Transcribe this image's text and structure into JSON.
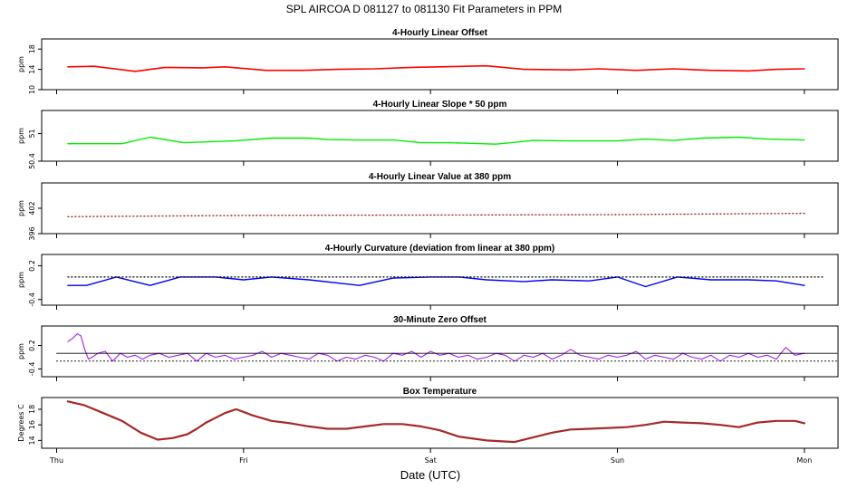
{
  "figure": {
    "title": "SPL   AIRCOA D   081127 to 081130   Fit Parameters in PPM",
    "xlabel": "Date (UTC)",
    "x_ticks": [
      "Thu",
      "Fri",
      "Sat",
      "Sun",
      "Mon"
    ]
  },
  "chart_data": [
    {
      "type": "line",
      "title": "4-Hourly Linear Offset",
      "ylabel": "ppm",
      "ylim": [
        10,
        20
      ],
      "yticks": [
        10,
        14,
        18
      ],
      "series": [
        {
          "color": "#ff0000",
          "width": 1.6,
          "style": "solid",
          "x": [
            0.06,
            0.2,
            0.42,
            0.58,
            0.78,
            0.9,
            1.12,
            1.32,
            1.5,
            1.7,
            1.9,
            2.05,
            2.3,
            2.5,
            2.75,
            2.9,
            3.1,
            3.3,
            3.5,
            3.7,
            3.85,
            4.0
          ],
          "values": [
            14.5,
            14.6,
            13.6,
            14.4,
            14.3,
            14.5,
            13.8,
            13.8,
            14.0,
            14.1,
            14.4,
            14.5,
            14.7,
            14.0,
            13.9,
            14.1,
            13.8,
            14.1,
            13.8,
            13.7,
            14.0,
            14.1
          ]
        }
      ]
    },
    {
      "type": "line",
      "title": "4-Hourly Linear Slope * 50 ppm",
      "ylabel": "ppm",
      "ylim": [
        50.4,
        51.5
      ],
      "yticks": [
        50.4,
        51.0
      ],
      "series": [
        {
          "color": "#00ee00",
          "width": 1.4,
          "style": "solid",
          "x": [
            0.06,
            0.35,
            0.5,
            0.68,
            0.95,
            1.15,
            1.35,
            1.45,
            1.6,
            1.8,
            1.95,
            2.1,
            2.35,
            2.55,
            2.75,
            3.0,
            3.15,
            3.3,
            3.45,
            3.65,
            3.8,
            4.0
          ],
          "values": [
            50.78,
            50.78,
            50.92,
            50.8,
            50.84,
            50.9,
            50.9,
            50.87,
            50.86,
            50.86,
            50.8,
            50.8,
            50.77,
            50.85,
            50.84,
            50.84,
            50.88,
            50.85,
            50.9,
            50.92,
            50.88,
            50.86
          ]
        }
      ]
    },
    {
      "type": "line",
      "title": "4-Hourly Linear Value at 380 ppm",
      "ylabel": "ppm",
      "ylim": [
        396,
        408
      ],
      "yticks": [
        396,
        402
      ],
      "series": [
        {
          "color": "#a52a2a",
          "width": 1.4,
          "style": "dotted",
          "x": [
            0.06,
            1.0,
            2.0,
            3.0,
            4.0
          ],
          "values": [
            400.0,
            400.3,
            400.4,
            400.5,
            400.8
          ]
        }
      ]
    },
    {
      "type": "line",
      "title": "4-Hourly Curvature (deviation from linear at 380 ppm)",
      "ylabel": "ppm",
      "ylim": [
        -0.5,
        0.4
      ],
      "yticks": [
        -0.4,
        0.2
      ],
      "series": [
        {
          "color": "#0000ee",
          "width": 1.4,
          "style": "solid",
          "x": [
            0.06,
            0.16,
            0.32,
            0.5,
            0.66,
            0.85,
            1.0,
            1.15,
            1.35,
            1.62,
            1.8,
            2.0,
            2.15,
            2.3,
            2.5,
            2.65,
            2.85,
            3.0,
            3.15,
            3.32,
            3.5,
            3.7,
            3.85,
            4.0
          ],
          "values": [
            -0.15,
            -0.15,
            0.0,
            -0.15,
            0.0,
            0.0,
            -0.05,
            0.0,
            -0.05,
            -0.15,
            -0.02,
            0.0,
            0.0,
            -0.05,
            -0.08,
            -0.05,
            -0.07,
            0.0,
            -0.17,
            0.0,
            -0.05,
            -0.05,
            -0.07,
            -0.15
          ]
        },
        {
          "color": "#000000",
          "width": 1.3,
          "style": "dotted",
          "x": [
            0.06,
            4.1
          ],
          "values": [
            0.0,
            0.0
          ]
        }
      ]
    },
    {
      "type": "line",
      "title": "30-Minute Zero Offset",
      "ylabel": "ppm",
      "ylim": [
        -0.6,
        0.7
      ],
      "yticks": [
        -0.4,
        0.2
      ],
      "series": [
        {
          "color": "#a020f0",
          "width": 1.1,
          "style": "solid",
          "x": [
            0.06,
            0.09,
            0.11,
            0.13,
            0.15,
            0.17,
            0.19,
            0.22,
            0.26,
            0.3,
            0.34,
            0.38,
            0.42,
            0.46,
            0.5,
            0.55,
            0.6,
            0.65,
            0.7,
            0.75,
            0.8,
            0.85,
            0.9,
            0.95,
            1.0,
            1.05,
            1.1,
            1.15,
            1.2,
            1.25,
            1.3,
            1.35,
            1.4,
            1.45,
            1.5,
            1.55,
            1.6,
            1.65,
            1.7,
            1.75,
            1.8,
            1.85,
            1.9,
            1.95,
            2.0,
            2.05,
            2.1,
            2.15,
            2.2,
            2.25,
            2.3,
            2.35,
            2.4,
            2.45,
            2.5,
            2.55,
            2.6,
            2.65,
            2.7,
            2.75,
            2.8,
            2.85,
            2.9,
            2.95,
            3.0,
            3.05,
            3.1,
            3.15,
            3.2,
            3.25,
            3.3,
            3.35,
            3.4,
            3.45,
            3.5,
            3.55,
            3.6,
            3.65,
            3.7,
            3.75,
            3.8,
            3.85,
            3.9,
            3.95,
            4.0
          ],
          "values": [
            0.3,
            0.4,
            0.5,
            0.45,
            0.1,
            -0.15,
            -0.1,
            0.0,
            0.05,
            -0.2,
            0.0,
            -0.1,
            -0.05,
            -0.15,
            -0.05,
            0.0,
            -0.1,
            -0.05,
            0.0,
            -0.2,
            0.0,
            -0.1,
            -0.05,
            -0.15,
            -0.1,
            -0.05,
            0.05,
            -0.1,
            0.0,
            -0.05,
            -0.1,
            -0.15,
            0.0,
            -0.05,
            -0.2,
            -0.1,
            -0.15,
            -0.05,
            -0.1,
            -0.2,
            0.0,
            -0.05,
            0.05,
            -0.1,
            0.05,
            -0.05,
            0.0,
            -0.1,
            -0.05,
            -0.15,
            -0.1,
            0.0,
            -0.05,
            -0.2,
            -0.05,
            -0.1,
            0.0,
            -0.15,
            -0.05,
            0.1,
            -0.05,
            -0.1,
            -0.15,
            -0.05,
            -0.1,
            -0.05,
            0.05,
            -0.15,
            -0.05,
            -0.1,
            -0.15,
            0.0,
            -0.1,
            -0.15,
            -0.05,
            -0.2,
            -0.05,
            -0.1,
            0.0,
            -0.1,
            -0.05,
            -0.15,
            0.15,
            -0.05,
            0.0
          ]
        },
        {
          "color": "#000000",
          "width": 0.8,
          "style": "solid",
          "x": [
            0.0,
            4.2
          ],
          "values": [
            0.0,
            0.0
          ]
        },
        {
          "color": "#000000",
          "width": 1.0,
          "style": "dotted",
          "x": [
            0.0,
            4.2
          ],
          "values": [
            -0.2,
            -0.2
          ]
        }
      ]
    },
    {
      "type": "line",
      "title": "Box Temperature",
      "ylabel": "Degrees C",
      "ylim": [
        13,
        19.5
      ],
      "yticks": [
        14,
        16,
        18
      ],
      "series": [
        {
          "color": "#a52a2a",
          "width": 2.2,
          "style": "solid",
          "x": [
            0.06,
            0.15,
            0.25,
            0.35,
            0.45,
            0.54,
            0.62,
            0.7,
            0.75,
            0.8,
            0.9,
            0.96,
            1.05,
            1.15,
            1.25,
            1.35,
            1.45,
            1.55,
            1.65,
            1.75,
            1.85,
            1.95,
            2.05,
            2.15,
            2.3,
            2.45,
            2.55,
            2.65,
            2.75,
            2.85,
            2.95,
            3.05,
            3.15,
            3.25,
            3.35,
            3.45,
            3.55,
            3.65,
            3.75,
            3.85,
            3.95,
            4.0
          ],
          "values": [
            19.0,
            18.5,
            17.5,
            16.5,
            15.0,
            14.1,
            14.3,
            14.8,
            15.5,
            16.3,
            17.5,
            18.0,
            17.2,
            16.5,
            16.2,
            15.8,
            15.5,
            15.5,
            15.8,
            16.1,
            16.1,
            15.8,
            15.3,
            14.5,
            14.0,
            13.8,
            14.4,
            15.0,
            15.4,
            15.5,
            15.6,
            15.7,
            16.0,
            16.4,
            16.3,
            16.2,
            16.0,
            15.7,
            16.3,
            16.5,
            16.5,
            16.2
          ]
        }
      ]
    }
  ]
}
